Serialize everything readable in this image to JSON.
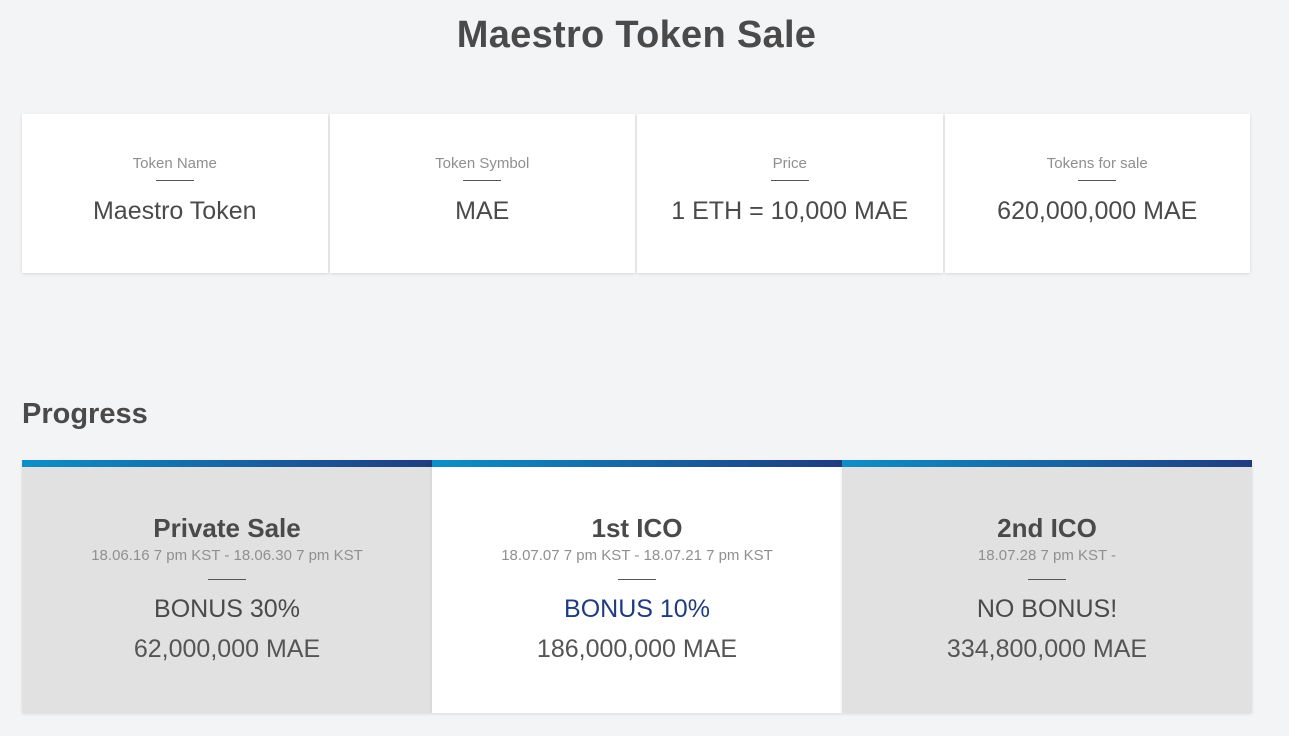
{
  "page": {
    "title": "Maestro Token Sale"
  },
  "info_cards": [
    {
      "label": "Token Name",
      "value": "Maestro Token"
    },
    {
      "label": "Token Symbol",
      "value": "MAE"
    },
    {
      "label": "Price",
      "value": "1 ETH = 10,000 MAE"
    },
    {
      "label": "Tokens for sale",
      "value": "620,000,000 MAE"
    }
  ],
  "progress": {
    "title": "Progress",
    "stages": [
      {
        "name": "Private Sale",
        "dates": "18.06.16 7 pm KST - 18.06.30 7 pm KST",
        "bonus": "BONUS 30%",
        "amount": "62,000,000 MAE",
        "active": false
      },
      {
        "name": "1st ICO",
        "dates": "18.07.07 7 pm KST - 18.07.21 7 pm KST",
        "bonus": "BONUS 10%",
        "amount": "186,000,000 MAE",
        "active": true
      },
      {
        "name": "2nd ICO",
        "dates": "18.07.28 7 pm KST -",
        "bonus": "NO BONUS!",
        "amount": "334,800,000 MAE",
        "active": false
      }
    ]
  },
  "colors": {
    "background": "#f3f4f6",
    "accent_start": "#0e8fc6",
    "accent_end": "#203c7f",
    "inactive_stage": "#e1e1e1"
  }
}
